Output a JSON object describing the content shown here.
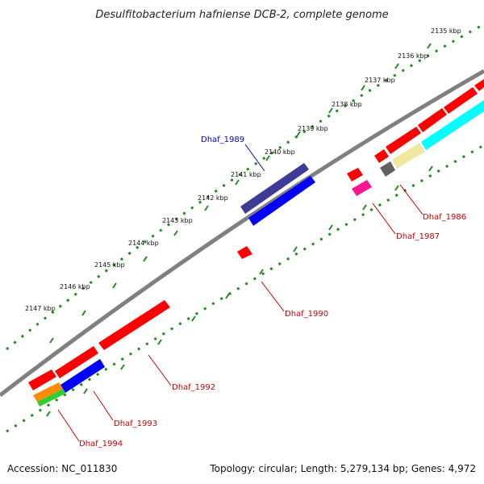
{
  "title": "Desulfitobacterium hafniense DCB-2, complete genome",
  "scale_labels": [
    "2135 kbp",
    "2136 kbp",
    "2137 kbp",
    "2138 kbp",
    "2139 kbp",
    "2140 kbp",
    "2141 kbp",
    "2142 kbp",
    "2143 kbp",
    "2144 kbp",
    "2145 kbp",
    "2146 kbp",
    "2147 kbp"
  ],
  "gene_labels": [
    {
      "name": "Dhaf_1989",
      "color": "#0000cc"
    },
    {
      "name": "Dhaf_1986",
      "color": "#cc0000"
    },
    {
      "name": "Dhaf_1987",
      "color": "#cc0000"
    },
    {
      "name": "Dhaf_1990",
      "color": "#cc0000"
    },
    {
      "name": "Dhaf_1992",
      "color": "#cc0000"
    },
    {
      "name": "Dhaf_1993",
      "color": "#cc0000"
    },
    {
      "name": "Dhaf_1994",
      "color": "#cc0000"
    }
  ],
  "colors": {
    "backbone": "#808080",
    "scale": "#228b22",
    "red": "#ff0000",
    "blue": "#0000ff",
    "navy": "#3c3c96",
    "cyan": "#00ffff",
    "yellow": "#f0e8a0",
    "gray": "#606060",
    "magenta": "#ff1493",
    "orange": "#ff8c00",
    "green": "#32cd32"
  },
  "footer": {
    "accession": "Accession: NC_011830",
    "info": "Topology: circular; Length: 5,279,134 bp; Genes: 4,972"
  }
}
